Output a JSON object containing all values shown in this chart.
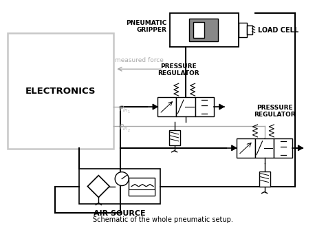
{
  "bg_color": "#ffffff",
  "line_color": "#000000",
  "gray_color": "#aaaaaa",
  "light_gray": "#c8c8c8",
  "electronics_label": "ELECTRONICS",
  "air_source_label": "AIR SOURCE",
  "pneumatic_gripper_label": "PNEUMATIC\nGRIPPER",
  "load_cell_label": "LOAD CELL",
  "pressure_reg1_label": "PRESSURE\nREGULATOR",
  "pressure_reg2_label": "PRESSURE\nREGULATOR",
  "measured_force_label": "measured force",
  "title": "Schematic of the whole pneumatic setup."
}
